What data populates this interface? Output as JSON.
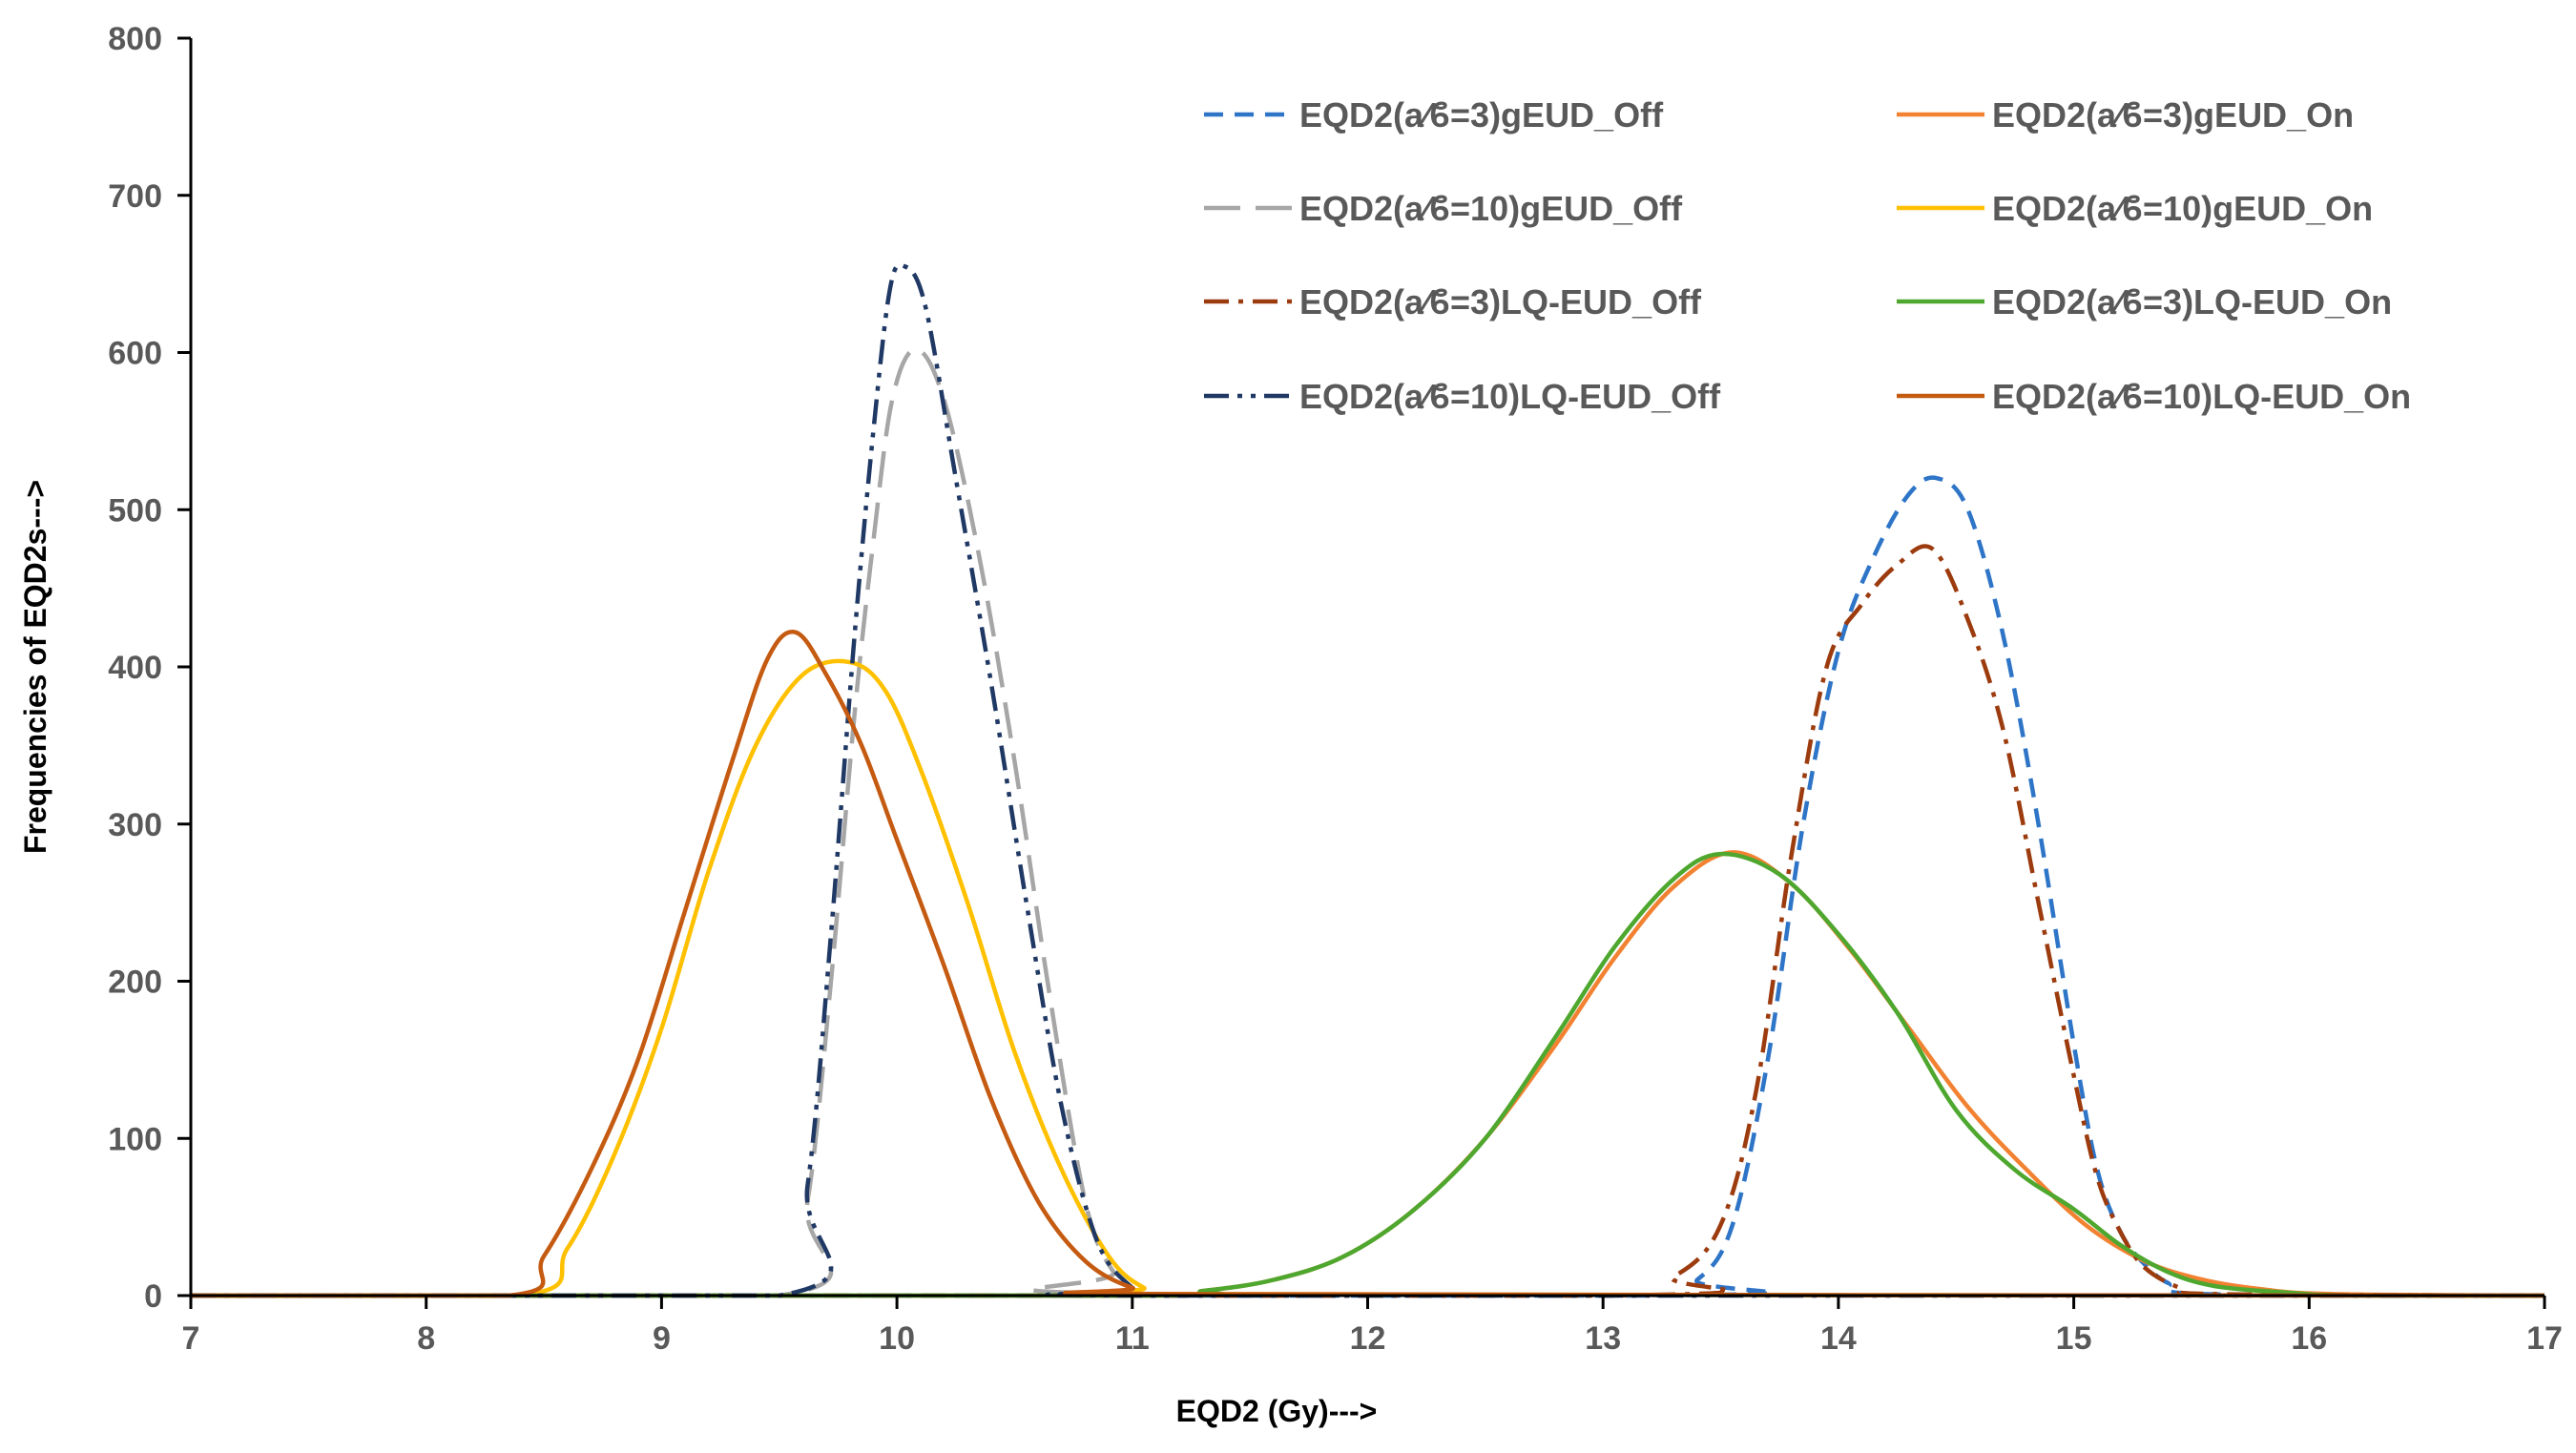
{
  "chart_data": {
    "type": "line",
    "title": "",
    "xlabel": "EQD2 (Gy)--->",
    "ylabel": "Frequencies of EQD2s--->",
    "xlim": [
      7,
      17
    ],
    "ylim": [
      0,
      800
    ],
    "xticks": [
      "7",
      "8",
      "9",
      "10",
      "11",
      "12",
      "13",
      "14",
      "15",
      "16",
      "17"
    ],
    "yticks": [
      "0",
      "100",
      "200",
      "300",
      "400",
      "500",
      "600",
      "700",
      "800"
    ],
    "grid": false,
    "legend_position": "top-right",
    "series": [
      {
        "name": "EQD2(a⁄ϐ=3)gEUD_Off",
        "color": "#2E75C7",
        "dash": "dash",
        "points": [
          [
            7,
            0
          ],
          [
            13.2,
            0
          ],
          [
            13.4,
            10
          ],
          [
            13.55,
            45
          ],
          [
            13.7,
            150
          ],
          [
            13.85,
            300
          ],
          [
            14.0,
            410
          ],
          [
            14.15,
            470
          ],
          [
            14.3,
            510
          ],
          [
            14.42,
            520
          ],
          [
            14.55,
            500
          ],
          [
            14.7,
            420
          ],
          [
            14.85,
            300
          ],
          [
            15.0,
            160
          ],
          [
            15.1,
            80
          ],
          [
            15.2,
            40
          ],
          [
            15.3,
            20
          ],
          [
            15.4,
            8
          ],
          [
            15.55,
            1
          ],
          [
            17,
            0
          ]
        ]
      },
      {
        "name": "EQD2(a⁄ϐ=3)gEUD_On",
        "color": "#F28232",
        "dash": "solid",
        "points": [
          [
            7,
            0
          ],
          [
            11.0,
            0
          ],
          [
            11.3,
            3
          ],
          [
            11.6,
            10
          ],
          [
            11.9,
            25
          ],
          [
            12.2,
            55
          ],
          [
            12.5,
            100
          ],
          [
            12.8,
            160
          ],
          [
            13.05,
            215
          ],
          [
            13.3,
            260
          ],
          [
            13.55,
            282
          ],
          [
            13.8,
            262
          ],
          [
            14.05,
            220
          ],
          [
            14.3,
            170
          ],
          [
            14.55,
            120
          ],
          [
            14.8,
            80
          ],
          [
            15.05,
            45
          ],
          [
            15.3,
            22
          ],
          [
            15.55,
            10
          ],
          [
            15.8,
            4
          ],
          [
            16.1,
            1
          ],
          [
            17,
            0
          ]
        ]
      },
      {
        "name": "EQD2(a⁄ϐ=10)gEUD_Off",
        "color": "#A6A6A6",
        "dash": "longdash",
        "points": [
          [
            7,
            0
          ],
          [
            9.5,
            0
          ],
          [
            9.62,
            60
          ],
          [
            9.72,
            200
          ],
          [
            9.82,
            370
          ],
          [
            9.9,
            480
          ],
          [
            9.98,
            570
          ],
          [
            10.08,
            602
          ],
          [
            10.2,
            570
          ],
          [
            10.35,
            470
          ],
          [
            10.5,
            340
          ],
          [
            10.65,
            190
          ],
          [
            10.8,
            60
          ],
          [
            10.92,
            15
          ],
          [
            11.05,
            1
          ],
          [
            17,
            0
          ]
        ]
      },
      {
        "name": "EQD2(a⁄ϐ=10)gEUD_On",
        "color": "#FFC000",
        "dash": "solid",
        "points": [
          [
            7,
            0
          ],
          [
            8.4,
            0
          ],
          [
            8.6,
            30
          ],
          [
            8.8,
            90
          ],
          [
            9.0,
            170
          ],
          [
            9.2,
            270
          ],
          [
            9.4,
            350
          ],
          [
            9.6,
            395
          ],
          [
            9.8,
            403
          ],
          [
            9.95,
            385
          ],
          [
            10.1,
            335
          ],
          [
            10.3,
            250
          ],
          [
            10.5,
            155
          ],
          [
            10.7,
            80
          ],
          [
            10.9,
            25
          ],
          [
            11.05,
            5
          ],
          [
            11.2,
            1
          ],
          [
            17,
            0
          ]
        ]
      },
      {
        "name": "EQD2(a⁄ϐ=3)LQ-EUD_Off",
        "color": "#9C3B0E",
        "dash": "dashdot",
        "points": [
          [
            7,
            0
          ],
          [
            13.0,
            0
          ],
          [
            13.3,
            12
          ],
          [
            13.5,
            45
          ],
          [
            13.65,
            130
          ],
          [
            13.8,
            280
          ],
          [
            13.95,
            400
          ],
          [
            14.1,
            440
          ],
          [
            14.25,
            465
          ],
          [
            14.4,
            475
          ],
          [
            14.55,
            430
          ],
          [
            14.7,
            360
          ],
          [
            14.85,
            250
          ],
          [
            15.0,
            140
          ],
          [
            15.1,
            75
          ],
          [
            15.2,
            40
          ],
          [
            15.3,
            18
          ],
          [
            15.45,
            5
          ],
          [
            15.6,
            1
          ],
          [
            17,
            0
          ]
        ]
      },
      {
        "name": "EQD2(a⁄ϐ=3)LQ-EUD_On",
        "color": "#4EA72E",
        "dash": "solid",
        "points": [
          [
            7,
            0
          ],
          [
            11.0,
            0
          ],
          [
            11.3,
            3
          ],
          [
            11.6,
            10
          ],
          [
            11.9,
            25
          ],
          [
            12.2,
            55
          ],
          [
            12.5,
            100
          ],
          [
            12.8,
            165
          ],
          [
            13.05,
            222
          ],
          [
            13.3,
            265
          ],
          [
            13.5,
            281
          ],
          [
            13.75,
            268
          ],
          [
            14.0,
            230
          ],
          [
            14.25,
            180
          ],
          [
            14.5,
            118
          ],
          [
            14.75,
            80
          ],
          [
            15.0,
            55
          ],
          [
            15.2,
            32
          ],
          [
            15.4,
            15
          ],
          [
            15.6,
            6
          ],
          [
            15.9,
            2
          ],
          [
            16.2,
            0
          ],
          [
            17,
            0
          ]
        ]
      },
      {
        "name": "EQD2(a⁄ϐ=10)LQ-EUD_Off",
        "color": "#1F3864",
        "dash": "dashdotdot",
        "points": [
          [
            7,
            0
          ],
          [
            9.5,
            0
          ],
          [
            9.62,
            70
          ],
          [
            9.72,
            230
          ],
          [
            9.82,
            420
          ],
          [
            9.9,
            550
          ],
          [
            9.97,
            640
          ],
          [
            10.03,
            655
          ],
          [
            10.12,
            630
          ],
          [
            10.25,
            520
          ],
          [
            10.4,
            390
          ],
          [
            10.55,
            250
          ],
          [
            10.7,
            120
          ],
          [
            10.85,
            35
          ],
          [
            11.0,
            5
          ],
          [
            11.1,
            0
          ],
          [
            17,
            0
          ]
        ]
      },
      {
        "name": "EQD2(a⁄ϐ=10)LQ-EUD_On",
        "color": "#C55A11",
        "dash": "solid",
        "points": [
          [
            7,
            0
          ],
          [
            8.35,
            0
          ],
          [
            8.5,
            25
          ],
          [
            8.7,
            80
          ],
          [
            8.9,
            150
          ],
          [
            9.1,
            245
          ],
          [
            9.3,
            340
          ],
          [
            9.45,
            405
          ],
          [
            9.57,
            422
          ],
          [
            9.7,
            395
          ],
          [
            9.85,
            350
          ],
          [
            10.0,
            290
          ],
          [
            10.2,
            210
          ],
          [
            10.4,
            125
          ],
          [
            10.6,
            60
          ],
          [
            10.8,
            22
          ],
          [
            11.0,
            5
          ],
          [
            11.2,
            1
          ],
          [
            17,
            0
          ]
        ]
      }
    ]
  }
}
